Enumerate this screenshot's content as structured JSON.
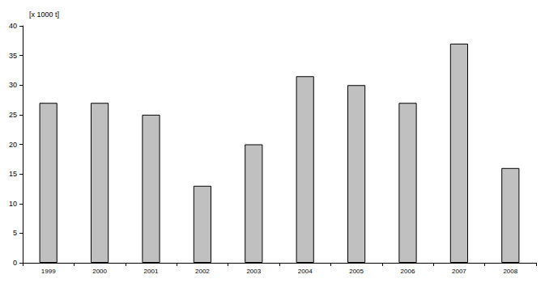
{
  "chart_data": {
    "type": "bar",
    "y_label": "[x 1000 t]",
    "categories": [
      "1999",
      "2000",
      "2001",
      "2002",
      "2003",
      "2004",
      "2005",
      "2006",
      "2007",
      "2008"
    ],
    "values": [
      27,
      27,
      25,
      13,
      20,
      31.5,
      30,
      27,
      37,
      16
    ],
    "color": "#c0c0c0",
    "ylim": [
      0,
      40
    ],
    "yticks": [
      0,
      5,
      10,
      15,
      20,
      25,
      30,
      35,
      40
    ],
    "grid": false
  }
}
